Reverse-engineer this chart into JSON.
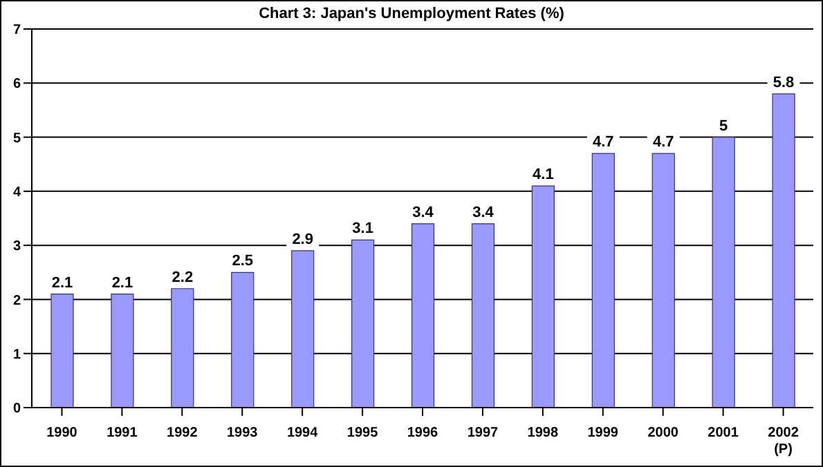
{
  "chart_data": {
    "type": "bar",
    "title": "Chart 3: Japan's Unemployment Rates (%)",
    "categories": [
      "1990",
      "1991",
      "1992",
      "1993",
      "1994",
      "1995",
      "1996",
      "1997",
      "1998",
      "1999",
      "2000",
      "2001",
      "2002\n(P)"
    ],
    "values": [
      2.1,
      2.1,
      2.2,
      2.5,
      2.9,
      3.1,
      3.4,
      3.4,
      4.1,
      4.7,
      4.7,
      5,
      5.8
    ],
    "color": "#9999ff",
    "ylim": [
      0,
      7
    ],
    "yticks": [
      0,
      1,
      2,
      3,
      4,
      5,
      6,
      7
    ],
    "grid": "y",
    "data_labels": true,
    "legend": false
  }
}
